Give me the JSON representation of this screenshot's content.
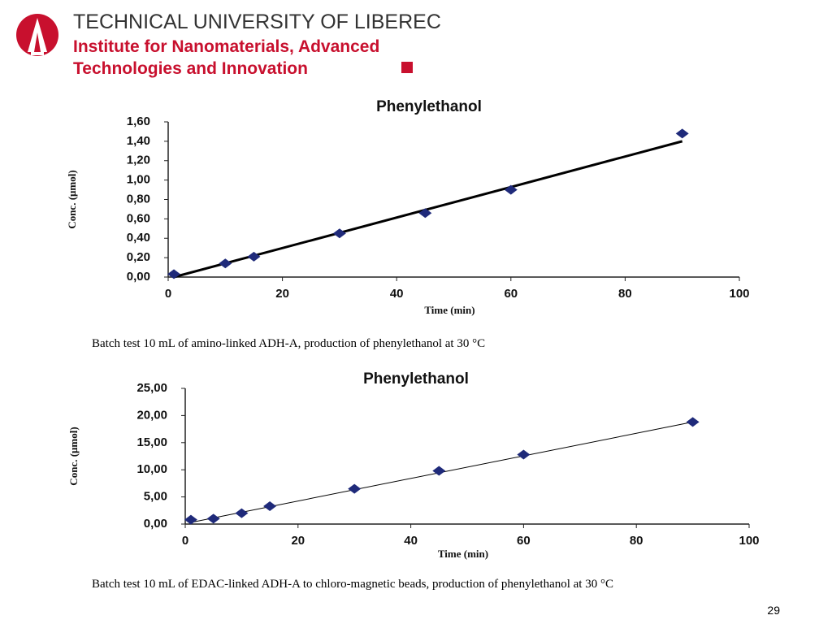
{
  "header": {
    "university": "TECHNICAL UNIVERSITY OF LIBEREC",
    "institute_line1": "Institute for Nanomaterials, Advanced",
    "institute_line2": "Technologies and Innovation"
  },
  "chart_data": [
    {
      "type": "scatter",
      "title": "Phenylethanol",
      "x_label": "Time (min)",
      "y_label": "Conc. (μmol)",
      "color": "#1f2a7a",
      "line_color": "#000000",
      "x": [
        1,
        10,
        15,
        30,
        45,
        60,
        90
      ],
      "values": [
        0.03,
        0.14,
        0.21,
        0.45,
        0.66,
        0.9,
        1.48
      ],
      "trendline": {
        "x": [
          1,
          90
        ],
        "values": [
          0.0,
          1.4
        ]
      },
      "xlim": [
        0,
        100
      ],
      "xticks": [
        0,
        20,
        40,
        60,
        80,
        100
      ],
      "ylim": [
        0,
        1.6
      ],
      "yticks": [
        {
          "value": 0,
          "label": "0,00"
        },
        {
          "value": 0.2,
          "label": "0,20"
        },
        {
          "value": 0.4,
          "label": "0,40"
        },
        {
          "value": 0.6,
          "label": "0,60"
        },
        {
          "value": 0.8,
          "label": "0,80"
        },
        {
          "value": 1.0,
          "label": "1,00"
        },
        {
          "value": 1.2,
          "label": "1,20"
        },
        {
          "value": 1.4,
          "label": "1,40"
        },
        {
          "value": 1.6,
          "label": "1,60"
        }
      ]
    },
    {
      "type": "scatter",
      "title": "Phenylethanol",
      "x_label": "Time (min)",
      "y_label": "Conc. (μmol)",
      "color": "#1f2a7a",
      "line_color": "#000000",
      "x": [
        1,
        5,
        10,
        15,
        30,
        45,
        60,
        90
      ],
      "values": [
        0.8,
        1.0,
        2.0,
        3.3,
        6.5,
        9.8,
        12.8,
        18.8
      ],
      "trendline": {
        "x": [
          1,
          90
        ],
        "values": [
          0.3,
          18.8
        ]
      },
      "xlim": [
        0,
        100
      ],
      "xticks": [
        0,
        20,
        40,
        60,
        80,
        100
      ],
      "ylim": [
        0,
        25
      ],
      "yticks": [
        {
          "value": 0,
          "label": "0,00"
        },
        {
          "value": 5,
          "label": "5,00"
        },
        {
          "value": 10,
          "label": "10,00"
        },
        {
          "value": 15,
          "label": "15,00"
        },
        {
          "value": 20,
          "label": "20,00"
        },
        {
          "value": 25,
          "label": "25,00"
        }
      ]
    }
  ],
  "captions": [
    "Batch test 10 mL of amino-linked ADH-A, production of phenylethanol at 30 °C",
    "Batch test 10 mL of EDAC-linked ADH-A to chloro-magnetic beads, production of phenylethanol at 30 °C"
  ],
  "page_number": "29"
}
